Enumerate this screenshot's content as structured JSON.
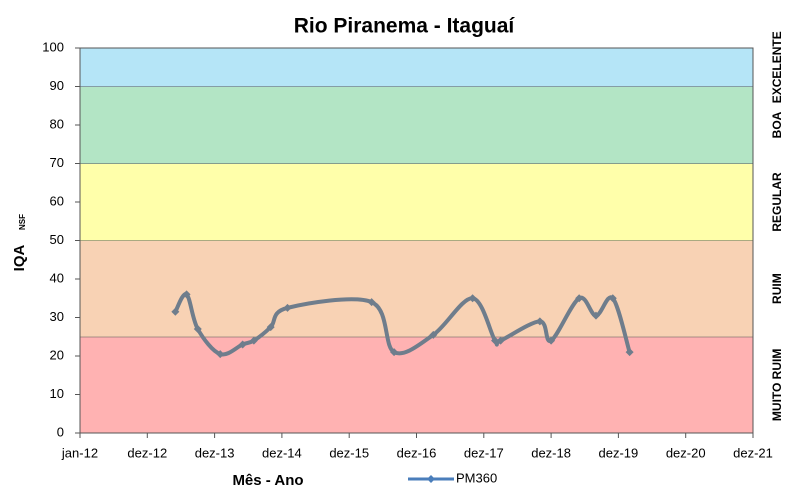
{
  "chart_data": {
    "type": "line",
    "title": "Rio Piranema - Itaguaí",
    "x_label": "Mês - Ano",
    "y_label": "IQA",
    "y_label_sub": "NSF",
    "xlim": [
      0,
      120
    ],
    "xticks": [
      {
        "value": 0,
        "label": "jan-12"
      },
      {
        "value": 12,
        "label": "dez-12"
      },
      {
        "value": 24,
        "label": "dez-13"
      },
      {
        "value": 36,
        "label": "dez-14"
      },
      {
        "value": 48,
        "label": "dez-15"
      },
      {
        "value": 60,
        "label": "dez-16"
      },
      {
        "value": 72,
        "label": "dez-17"
      },
      {
        "value": 84,
        "label": "dez-18"
      },
      {
        "value": 96,
        "label": "dez-19"
      },
      {
        "value": 108,
        "label": "dez-20"
      },
      {
        "value": 120,
        "label": "dez-21"
      }
    ],
    "ylim": [
      0,
      100
    ],
    "yticks": [
      0,
      10,
      20,
      30,
      40,
      50,
      60,
      70,
      80,
      90,
      100
    ],
    "bands": [
      {
        "from": 0,
        "to": 25,
        "label": "MUITO RUIM",
        "color": "#ffb2b2"
      },
      {
        "from": 25,
        "to": 50,
        "label": "RUIM",
        "color": "#f8d2b4"
      },
      {
        "from": 50,
        "to": 70,
        "label": "REGULAR",
        "color": "#ffffaa"
      },
      {
        "from": 70,
        "to": 90,
        "label": "BOA",
        "color": "#b3e5c5"
      },
      {
        "from": 90,
        "to": 100,
        "label": "EXCELENTE",
        "color": "#b5e5f7"
      }
    ],
    "legend": "bottom",
    "x": [
      17,
      19,
      21,
      25,
      29,
      31,
      34,
      37,
      52,
      56,
      63,
      70,
      74,
      75,
      82,
      84,
      89,
      92,
      95,
      98
    ],
    "series": [
      {
        "name": "PM360",
        "color": "#6f7d8c",
        "values": [
          31.5,
          36,
          27,
          20.5,
          23,
          24,
          27.5,
          32.5,
          34,
          21,
          25.5,
          35,
          24,
          24,
          29,
          24,
          35,
          30.5,
          35,
          21
        ]
      }
    ]
  }
}
